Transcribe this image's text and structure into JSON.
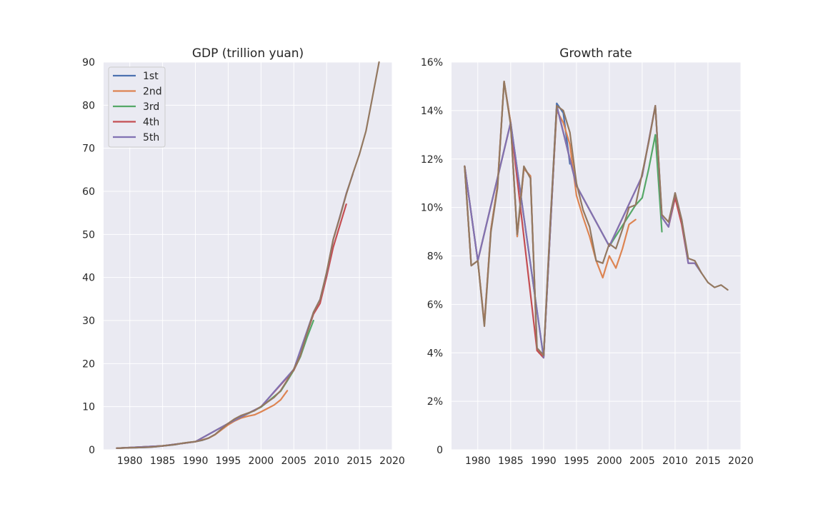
{
  "figure": {
    "series_names": [
      "1st",
      "2nd",
      "3rd",
      "4th",
      "5th"
    ],
    "series_colors": [
      "#4c72b0",
      "#dd8452",
      "#55a868",
      "#c44e52",
      "#8172b3",
      "#937860"
    ],
    "background": "#eaeaf2"
  },
  "chart_data": [
    {
      "type": "line",
      "title": "GDP (trillion yuan)",
      "xlabel": "",
      "ylabel": "",
      "xlim": [
        1976,
        2020
      ],
      "ylim": [
        0,
        90
      ],
      "xticks": [
        1980,
        1985,
        1990,
        1995,
        2000,
        2005,
        2010,
        2015,
        2020
      ],
      "yticks": [
        0,
        10,
        20,
        30,
        40,
        50,
        60,
        70,
        80,
        90
      ],
      "ytick_labels": [
        "0",
        "10",
        "20",
        "30",
        "40",
        "50",
        "60",
        "70",
        "80",
        "90"
      ],
      "grid": true,
      "legend": "top-left",
      "series": [
        {
          "name": "1st",
          "x": [
            1978,
            1979,
            1980,
            1981,
            1982,
            1983,
            1984,
            1985,
            1986,
            1987,
            1988,
            1989,
            1990,
            1991,
            1992,
            1993,
            1994
          ],
          "y": [
            0.37,
            0.41,
            0.46,
            0.49,
            0.53,
            0.6,
            0.72,
            0.9,
            1.03,
            1.21,
            1.5,
            1.7,
            1.87,
            2.18,
            2.69,
            3.53,
            4.8
          ]
        },
        {
          "name": "2nd",
          "x": [
            1978,
            1980,
            1985,
            1990,
            1992,
            1993,
            1994,
            1995,
            1996,
            1997,
            1998,
            1999,
            2000,
            2001,
            2002,
            2003,
            2004
          ],
          "y": [
            0.37,
            0.46,
            0.9,
            1.87,
            2.69,
            3.5,
            4.66,
            5.8,
            6.7,
            7.4,
            7.8,
            8.1,
            8.8,
            9.6,
            10.4,
            11.6,
            13.7
          ]
        },
        {
          "name": "3rd",
          "x": [
            1978,
            1985,
            1990,
            1995,
            2000,
            2003,
            2004,
            2005,
            2006,
            2007,
            2008
          ],
          "y": [
            0.37,
            0.9,
            1.87,
            6.1,
            9.9,
            13.6,
            16.0,
            18.5,
            21.6,
            26.0,
            30.0
          ]
        },
        {
          "name": "4th",
          "x": [
            1978,
            1985,
            1990,
            1995,
            2000,
            2005,
            2006,
            2007,
            2008,
            2009,
            2010,
            2011,
            2012,
            2013
          ],
          "y": [
            0.37,
            0.9,
            1.87,
            6.1,
            10.0,
            18.5,
            21.9,
            27.0,
            31.5,
            34.0,
            40.2,
            47.0,
            52.0,
            57.0
          ]
        },
        {
          "name": "5th",
          "x": [
            1978,
            1985,
            1990,
            1995,
            2000,
            2005,
            2008,
            2009,
            2010,
            2011,
            2012,
            2013,
            2014
          ],
          "y": [
            0.37,
            0.9,
            1.87,
            6.1,
            10.0,
            18.7,
            31.9,
            34.9,
            41.0,
            48.8,
            54.0,
            59.5,
            64.0
          ]
        },
        {
          "name": "",
          "x": [
            1978,
            1979,
            1980,
            1981,
            1982,
            1983,
            1984,
            1985,
            1986,
            1987,
            1988,
            1989,
            1990,
            1991,
            1992,
            1993,
            1994,
            1995,
            1996,
            1997,
            1998,
            1999,
            2000,
            2001,
            2002,
            2003,
            2004,
            2005,
            2006,
            2007,
            2008,
            2009,
            2010,
            2011,
            2012,
            2013,
            2014,
            2015,
            2016,
            2017,
            2018
          ],
          "y": [
            0.37,
            0.41,
            0.46,
            0.49,
            0.54,
            0.6,
            0.73,
            0.91,
            1.04,
            1.22,
            1.51,
            1.72,
            1.89,
            2.2,
            2.72,
            3.57,
            4.86,
            6.13,
            7.18,
            7.97,
            8.52,
            9.06,
            10.03,
            11.09,
            12.17,
            13.74,
            16.18,
            18.73,
            21.94,
            27.01,
            31.92,
            34.85,
            41.21,
            48.79,
            53.86,
            59.3,
            64.13,
            68.6,
            74.0,
            82.0,
            90.0
          ]
        }
      ]
    },
    {
      "type": "line",
      "title": "Growth rate",
      "xlabel": "",
      "ylabel": "",
      "xlim": [
        1976,
        2020
      ],
      "ylim": [
        0,
        16
      ],
      "xticks": [
        1980,
        1985,
        1990,
        1995,
        2000,
        2005,
        2010,
        2015,
        2020
      ],
      "yticks": [
        0,
        2,
        4,
        6,
        8,
        10,
        12,
        14,
        16
      ],
      "ytick_labels": [
        "0",
        "2%",
        "4%",
        "6%",
        "8%",
        "10%",
        "12%",
        "14%",
        "16%"
      ],
      "grid": true,
      "legend": "none",
      "series": [
        {
          "name": "1st",
          "x": [
            1978,
            1979,
            1980,
            1981,
            1982,
            1983,
            1984,
            1985,
            1986,
            1987,
            1988,
            1989,
            1990,
            1991,
            1992,
            1993,
            1994
          ],
          "y": [
            11.7,
            7.6,
            7.8,
            5.2,
            9.1,
            10.9,
            15.2,
            13.5,
            8.8,
            11.6,
            11.3,
            4.1,
            3.8,
            9.2,
            14.3,
            13.9,
            11.8
          ]
        },
        {
          "name": "2nd",
          "x": [
            1978,
            1979,
            1980,
            1981,
            1982,
            1983,
            1984,
            1985,
            1986,
            1987,
            1988,
            1989,
            1990,
            1991,
            1992,
            1993,
            1994,
            1995,
            1996,
            1997,
            1998,
            1999,
            2000,
            2001,
            2002,
            2003,
            2004
          ],
          "y": [
            11.7,
            7.6,
            7.8,
            5.2,
            9.1,
            10.9,
            15.2,
            13.5,
            8.8,
            11.6,
            11.3,
            4.1,
            3.8,
            9.2,
            14.0,
            13.5,
            12.6,
            10.5,
            9.6,
            8.8,
            7.8,
            7.1,
            8.0,
            7.5,
            8.3,
            9.3,
            9.5
          ]
        },
        {
          "name": "3rd",
          "x": [
            1978,
            1980,
            1985,
            1990,
            1992,
            1995,
            2000,
            2004,
            2005,
            2006,
            2007,
            2008
          ],
          "y": [
            11.7,
            7.8,
            13.5,
            3.8,
            14.2,
            10.9,
            8.4,
            10.1,
            10.4,
            11.6,
            13.0,
            9.0
          ]
        },
        {
          "name": "4th",
          "x": [
            1978,
            1980,
            1985,
            1989,
            1990,
            1992,
            1995,
            2000,
            2005,
            2007,
            2008,
            2009,
            2010,
            2011,
            2012,
            2013
          ],
          "y": [
            11.7,
            7.8,
            13.5,
            4.1,
            3.8,
            14.2,
            10.9,
            8.4,
            11.3,
            14.2,
            9.6,
            9.2,
            10.4,
            9.3,
            7.7,
            7.7
          ]
        },
        {
          "name": "5th",
          "x": [
            1978,
            1980,
            1985,
            1990,
            1992,
            1995,
            2000,
            2005,
            2007,
            2008,
            2009,
            2010,
            2011,
            2012,
            2013,
            2014
          ],
          "y": [
            11.7,
            7.8,
            13.5,
            3.8,
            14.2,
            10.9,
            8.4,
            11.3,
            14.2,
            9.6,
            9.2,
            10.6,
            9.5,
            7.7,
            7.7,
            7.3
          ]
        },
        {
          "name": "",
          "x": [
            1978,
            1979,
            1980,
            1981,
            1982,
            1983,
            1984,
            1985,
            1986,
            1987,
            1988,
            1989,
            1990,
            1991,
            1992,
            1993,
            1994,
            1995,
            1996,
            1997,
            1998,
            1999,
            2000,
            2001,
            2002,
            2003,
            2004,
            2005,
            2006,
            2007,
            2008,
            2009,
            2010,
            2011,
            2012,
            2013,
            2014,
            2015,
            2016,
            2017,
            2018
          ],
          "y": [
            11.7,
            7.6,
            7.8,
            5.1,
            9.0,
            10.8,
            15.2,
            13.4,
            8.9,
            11.7,
            11.2,
            4.2,
            3.9,
            9.3,
            14.2,
            14.0,
            13.1,
            11.0,
            9.9,
            9.2,
            7.8,
            7.7,
            8.5,
            8.3,
            9.1,
            10.0,
            10.1,
            11.4,
            12.7,
            14.2,
            9.7,
            9.4,
            10.6,
            9.5,
            7.9,
            7.8,
            7.3,
            6.9,
            6.7,
            6.8,
            6.6
          ]
        }
      ]
    }
  ]
}
